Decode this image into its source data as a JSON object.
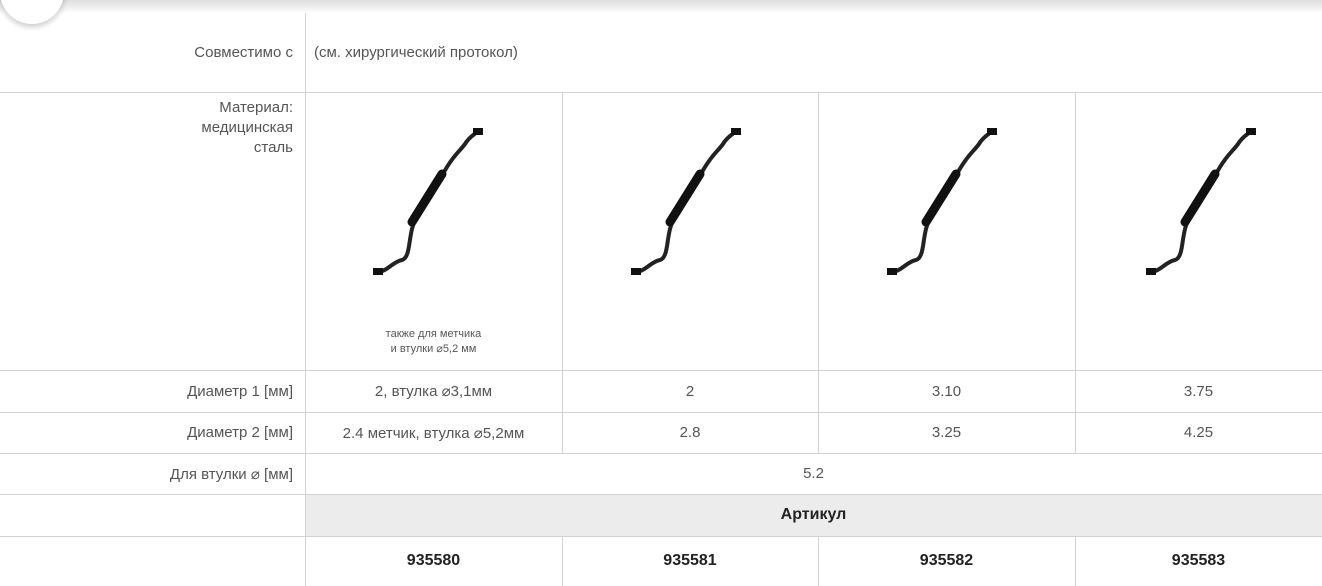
{
  "table": {
    "compatible": {
      "label": "Совместимо с",
      "value": "(см. хирургический протокол)"
    },
    "material": {
      "label_lines": [
        "Материал:",
        "медицинская",
        "сталь"
      ],
      "note_lines": [
        "также для метчика",
        "и втулки ⌀5,2 мм"
      ]
    },
    "diameter_1": {
      "label": "Диаметр 1 [мм]",
      "values": [
        "2, втулка ⌀3,1мм",
        "2",
        "3.10",
        "3.75"
      ]
    },
    "diameter_2": {
      "label": "Диаметр 2 [мм]",
      "values": [
        "2.4 метчик, втулка ⌀5,2мм",
        "2.8",
        "3.25",
        "4.25"
      ]
    },
    "bushing": {
      "label": "Для втулки ⌀ [мм]",
      "value": "5.2"
    },
    "article": {
      "header": "Артикул",
      "values": [
        "935580",
        "935581",
        "935582",
        "935583"
      ]
    }
  }
}
